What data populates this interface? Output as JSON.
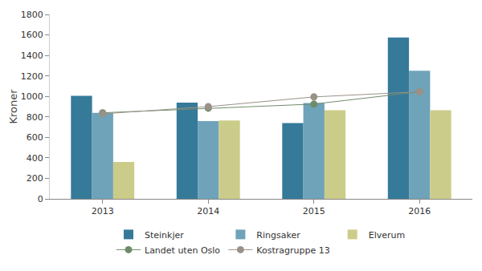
{
  "chart_data": {
    "type": "bar",
    "y_label": "Kroner",
    "categories": [
      "2013",
      "2014",
      "2015",
      "2016"
    ],
    "series": [
      {
        "name": "Steinkjer",
        "type": "bar",
        "color": "#367a9a",
        "values": [
          1005,
          940,
          740,
          1575
        ]
      },
      {
        "name": "Ringsaker",
        "type": "bar",
        "color": "#6fa3ba",
        "values": [
          840,
          760,
          935,
          1250
        ]
      },
      {
        "name": "Elverum",
        "type": "bar",
        "color": "#cccc8a",
        "values": [
          360,
          765,
          865,
          865
        ]
      },
      {
        "name": "Landet uten Oslo",
        "type": "line",
        "marker": "circle",
        "color": "#6f8c6a",
        "values": [
          840,
          885,
          925,
          1045
        ]
      },
      {
        "name": "Kostragruppe 13",
        "type": "line",
        "marker": "circle",
        "color": "#9a9288",
        "values": [
          830,
          900,
          995,
          1045
        ]
      }
    ],
    "ylim": [
      0,
      1800
    ],
    "yticks": [
      0,
      200,
      400,
      600,
      800,
      1000,
      1200,
      1400,
      1600,
      1800
    ],
    "grid": false,
    "legend": "bottom"
  }
}
